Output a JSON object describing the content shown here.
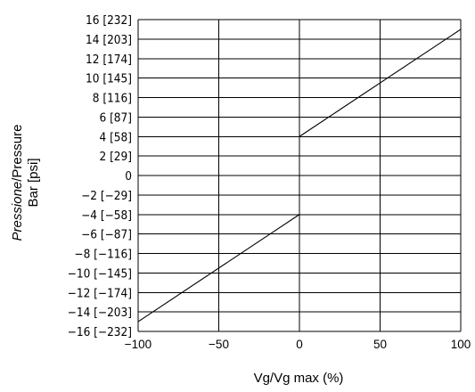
{
  "chart_data": {
    "type": "line",
    "title": "",
    "xlabel": "Vg/Vg max (%)",
    "ylabel": {
      "line1_italic": "Pressione",
      "line1_sep": "/",
      "line1_regular": "Pressure",
      "line2": "Bar [psi]"
    },
    "xlim": [
      -100,
      100
    ],
    "ylim": [
      -16,
      16
    ],
    "grid": true,
    "x_ticks": [
      {
        "value": -100,
        "label": "−100"
      },
      {
        "value": -50,
        "label": "−50"
      },
      {
        "value": 0,
        "label": "0"
      },
      {
        "value": 50,
        "label": "50"
      },
      {
        "value": 100,
        "label": "100"
      }
    ],
    "y_ticks": [
      {
        "value": 16,
        "label": "16 [232]"
      },
      {
        "value": 14,
        "label": "14 [203]"
      },
      {
        "value": 12,
        "label": "12 [174]"
      },
      {
        "value": 10,
        "label": "10 [145]"
      },
      {
        "value": 8,
        "label": "8 [116]"
      },
      {
        "value": 6,
        "label": "6 [87]"
      },
      {
        "value": 4,
        "label": "4 [58]"
      },
      {
        "value": 2,
        "label": "2 [29]"
      },
      {
        "value": 0,
        "label": "0"
      },
      {
        "value": -2,
        "label": "−2 [−29]"
      },
      {
        "value": -4,
        "label": "−4 [−58]"
      },
      {
        "value": -6,
        "label": "−6 [−87]"
      },
      {
        "value": -8,
        "label": "−8 [−116]"
      },
      {
        "value": -10,
        "label": "−10 [−145]"
      },
      {
        "value": -12,
        "label": "−12 [−174]"
      },
      {
        "value": -14,
        "label": "−14 [−203]"
      },
      {
        "value": -16,
        "label": "−16 [−232]"
      }
    ],
    "series": [
      {
        "values": [
          {
            "x": 0,
            "y": 4
          },
          {
            "x": 100,
            "y": 15
          }
        ]
      },
      {
        "values": [
          {
            "x": -100,
            "y": -15
          },
          {
            "x": 0,
            "y": -4
          }
        ]
      }
    ]
  }
}
